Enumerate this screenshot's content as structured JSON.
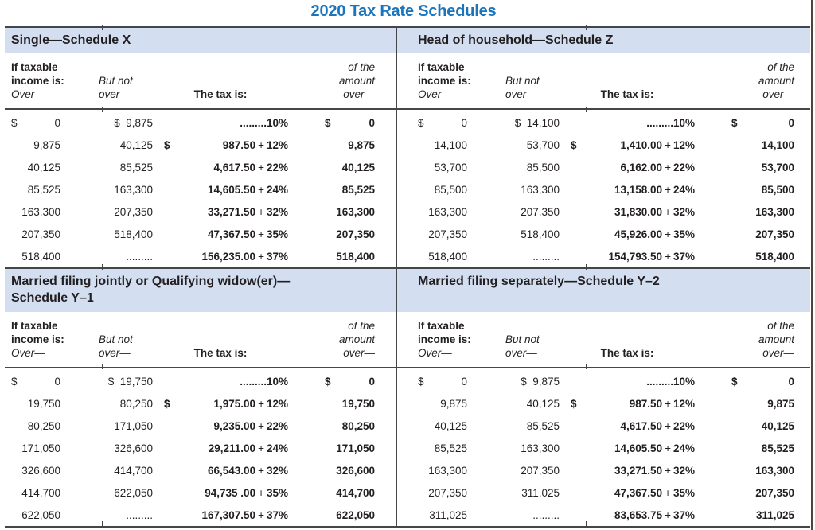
{
  "title": "2020 Tax Rate Schedules",
  "colors": {
    "title_blue": "#1b75bc",
    "band_background": "#d3dff1",
    "rule_gray": "#454648",
    "text": "#231f20"
  },
  "headers": {
    "if_taxable": "If taxable",
    "income_is": "income is:",
    "over": "Over—",
    "but_not": "But not",
    "but_not_over": "over—",
    "tax_is": "The tax is:",
    "of_the": "of the",
    "amount": "amount",
    "amount_over": "over—"
  },
  "schedules": [
    {
      "title": "Single—Schedule X",
      "rows": [
        {
          "over_sign": "$",
          "over": "0",
          "but_not": "$  9,875",
          "tax_sign": "",
          "tax_amount": ".........10%",
          "tax_rate": "",
          "amount_sign": "$",
          "amount": "0"
        },
        {
          "over_sign": "",
          "over": "9,875",
          "but_not": "40,125",
          "tax_sign": "$",
          "tax_amount": "987.50",
          "tax_rate": "12%",
          "amount_sign": "",
          "amount": "9,875"
        },
        {
          "over_sign": "",
          "over": "40,125",
          "but_not": "85,525",
          "tax_sign": "",
          "tax_amount": "4,617.50",
          "tax_rate": "22%",
          "amount_sign": "",
          "amount": "40,125"
        },
        {
          "over_sign": "",
          "over": "85,525",
          "but_not": "163,300",
          "tax_sign": "",
          "tax_amount": "14,605.50",
          "tax_rate": "24%",
          "amount_sign": "",
          "amount": "85,525"
        },
        {
          "over_sign": "",
          "over": "163,300",
          "but_not": "207,350",
          "tax_sign": "",
          "tax_amount": "33,271.50",
          "tax_rate": "32%",
          "amount_sign": "",
          "amount": "163,300"
        },
        {
          "over_sign": "",
          "over": "207,350",
          "but_not": "518,400",
          "tax_sign": "",
          "tax_amount": "47,367.50",
          "tax_rate": "35%",
          "amount_sign": "",
          "amount": "207,350"
        },
        {
          "over_sign": "",
          "over": "518,400",
          "but_not": ".........",
          "tax_sign": "",
          "tax_amount": "156,235.00",
          "tax_rate": "37%",
          "amount_sign": "",
          "amount": "518,400"
        }
      ]
    },
    {
      "title": "Head of household—Schedule Z",
      "rows": [
        {
          "over_sign": "$",
          "over": "0",
          "but_not": "$  14,100",
          "tax_sign": "",
          "tax_amount": ".........10%",
          "tax_rate": "",
          "amount_sign": "$",
          "amount": "0"
        },
        {
          "over_sign": "",
          "over": "14,100",
          "but_not": "53,700",
          "tax_sign": "$",
          "tax_amount": "1,410.00",
          "tax_rate": "12%",
          "amount_sign": "",
          "amount": "14,100"
        },
        {
          "over_sign": "",
          "over": "53,700",
          "but_not": "85,500",
          "tax_sign": "",
          "tax_amount": "6,162.00",
          "tax_rate": "22%",
          "amount_sign": "",
          "amount": "53,700"
        },
        {
          "over_sign": "",
          "over": "85,500",
          "but_not": "163,300",
          "tax_sign": "",
          "tax_amount": "13,158.00",
          "tax_rate": "24%",
          "amount_sign": "",
          "amount": "85,500"
        },
        {
          "over_sign": "",
          "over": "163,300",
          "but_not": "207,350",
          "tax_sign": "",
          "tax_amount": "31,830.00",
          "tax_rate": "32%",
          "amount_sign": "",
          "amount": "163,300"
        },
        {
          "over_sign": "",
          "over": "207,350",
          "but_not": "518,400",
          "tax_sign": "",
          "tax_amount": "45,926.00",
          "tax_rate": "35%",
          "amount_sign": "",
          "amount": "207,350"
        },
        {
          "over_sign": "",
          "over": "518,400",
          "but_not": ".........",
          "tax_sign": "",
          "tax_amount": "154,793.50",
          "tax_rate": "37%",
          "amount_sign": "",
          "amount": "518,400"
        }
      ]
    },
    {
      "title": "Married filing jointly or Qualifying widow(er)—",
      "title2": "Schedule Y–1",
      "rows": [
        {
          "over_sign": "$",
          "over": "0",
          "but_not": "$  19,750",
          "tax_sign": "",
          "tax_amount": ".........10%",
          "tax_rate": "",
          "amount_sign": "$",
          "amount": "0"
        },
        {
          "over_sign": "",
          "over": "19,750",
          "but_not": "80,250",
          "tax_sign": "$",
          "tax_amount": "1,975.00",
          "tax_rate": "12%",
          "amount_sign": "",
          "amount": "19,750"
        },
        {
          "over_sign": "",
          "over": "80,250",
          "but_not": "171,050",
          "tax_sign": "",
          "tax_amount": "9,235.00",
          "tax_rate": "22%",
          "amount_sign": "",
          "amount": "80,250"
        },
        {
          "over_sign": "",
          "over": "171,050",
          "but_not": "326,600",
          "tax_sign": "",
          "tax_amount": "29,211.00",
          "tax_rate": "24%",
          "amount_sign": "",
          "amount": "171,050"
        },
        {
          "over_sign": "",
          "over": "326,600",
          "but_not": "414,700",
          "tax_sign": "",
          "tax_amount": "66,543.00",
          "tax_rate": "32%",
          "amount_sign": "",
          "amount": "326,600"
        },
        {
          "over_sign": "",
          "over": "414,700",
          "but_not": "622,050",
          "tax_sign": "",
          "tax_amount": "94,735 .00",
          "tax_rate": "35%",
          "amount_sign": "",
          "amount": "414,700"
        },
        {
          "over_sign": "",
          "over": "622,050",
          "but_not": ".........",
          "tax_sign": "",
          "tax_amount": "167,307.50",
          "tax_rate": "37%",
          "amount_sign": "",
          "amount": "622,050"
        }
      ]
    },
    {
      "title": "Married filing separately—Schedule Y–2",
      "rows": [
        {
          "over_sign": "$",
          "over": "0",
          "but_not": "$  9,875",
          "tax_sign": "",
          "tax_amount": ".........10%",
          "tax_rate": "",
          "amount_sign": "$",
          "amount": "0"
        },
        {
          "over_sign": "",
          "over": "9,875",
          "but_not": "40,125",
          "tax_sign": "$",
          "tax_amount": "987.50",
          "tax_rate": "12%",
          "amount_sign": "",
          "amount": "9,875"
        },
        {
          "over_sign": "",
          "over": "40,125",
          "but_not": "85,525",
          "tax_sign": "",
          "tax_amount": "4,617.50",
          "tax_rate": "22%",
          "amount_sign": "",
          "amount": "40,125"
        },
        {
          "over_sign": "",
          "over": "85,525",
          "but_not": "163,300",
          "tax_sign": "",
          "tax_amount": "14,605.50",
          "tax_rate": "24%",
          "amount_sign": "",
          "amount": "85,525"
        },
        {
          "over_sign": "",
          "over": "163,300",
          "but_not": "207,350",
          "tax_sign": "",
          "tax_amount": "33,271.50",
          "tax_rate": "32%",
          "amount_sign": "",
          "amount": "163,300"
        },
        {
          "over_sign": "",
          "over": "207,350",
          "but_not": "311,025",
          "tax_sign": "",
          "tax_amount": "47,367.50",
          "tax_rate": "35%",
          "amount_sign": "",
          "amount": "207,350"
        },
        {
          "over_sign": "",
          "over": "311,025",
          "but_not": ".........",
          "tax_sign": "",
          "tax_amount": "83,653.75",
          "tax_rate": "37%",
          "amount_sign": "",
          "amount": "311,025"
        }
      ]
    }
  ]
}
